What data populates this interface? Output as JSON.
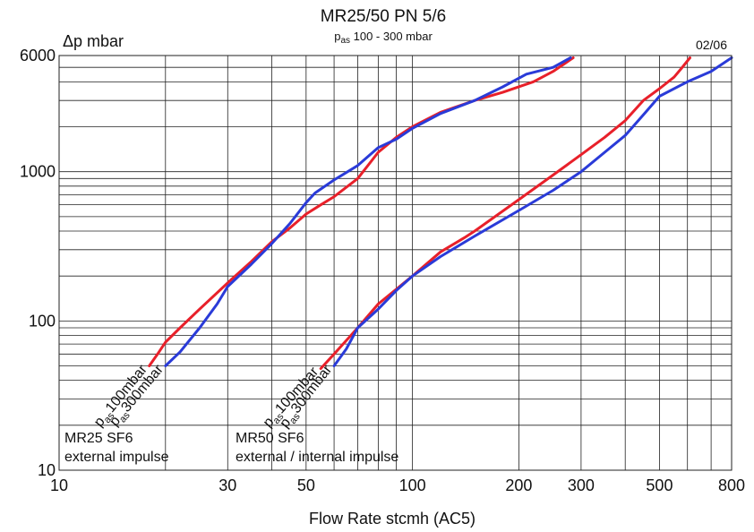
{
  "chart_data": {
    "type": "line",
    "title": "MR25/50 PN 5/6",
    "subtitle": {
      "prefix": "p",
      "sub": "as",
      "rest": " 100 - 300 mbar"
    },
    "corner_note": "02/06",
    "ylabel": "Δp mbar",
    "xlabel": "Flow Rate stcmh (AC5)",
    "x_scale": "log",
    "y_scale": "log",
    "xlim": [
      10,
      800
    ],
    "ylim": [
      10,
      6000
    ],
    "x_ticks": [
      {
        "value": 10,
        "label": "10"
      },
      {
        "value": 30,
        "label": "30"
      },
      {
        "value": 50,
        "label": "50"
      },
      {
        "value": 100,
        "label": "100"
      },
      {
        "value": 200,
        "label": "200"
      },
      {
        "value": 300,
        "label": "300"
      },
      {
        "value": 500,
        "label": "500"
      },
      {
        "value": 800,
        "label": "800"
      }
    ],
    "y_ticks": [
      {
        "value": 10,
        "label": "10"
      },
      {
        "value": 100,
        "label": "100"
      },
      {
        "value": 1000,
        "label": "1000"
      },
      {
        "value": 6000,
        "label": "6000"
      }
    ],
    "annotations": [
      {
        "name": "mr25",
        "lines": [
          "MR25 SF6",
          "external impulse"
        ]
      },
      {
        "name": "mr50",
        "lines": [
          "MR50 SF6",
          "external / internal impulse"
        ]
      }
    ],
    "colors": {
      "red": "#e8202a",
      "blue": "#2a3bd8"
    },
    "series": [
      {
        "group": "MR25",
        "color": "red",
        "label_prefix": "p",
        "label_sub": "as",
        "label_rest": "100mbar",
        "points": [
          [
            18,
            50
          ],
          [
            19,
            60
          ],
          [
            20,
            72
          ],
          [
            22,
            90
          ],
          [
            25,
            120
          ],
          [
            30,
            180
          ],
          [
            35,
            250
          ],
          [
            40,
            340
          ],
          [
            45,
            420
          ],
          [
            50,
            520
          ],
          [
            55,
            600
          ],
          [
            60,
            680
          ],
          [
            70,
            900
          ],
          [
            80,
            1350
          ],
          [
            90,
            1700
          ],
          [
            100,
            2000
          ],
          [
            120,
            2500
          ],
          [
            150,
            3000
          ],
          [
            180,
            3400
          ],
          [
            220,
            4000
          ],
          [
            250,
            4700
          ],
          [
            285,
            5800
          ]
        ]
      },
      {
        "group": "MR25",
        "color": "blue",
        "label_prefix": "p",
        "label_sub": "as",
        "label_rest": "300mbar",
        "points": [
          [
            20,
            50
          ],
          [
            22,
            62
          ],
          [
            25,
            90
          ],
          [
            28,
            130
          ],
          [
            30,
            170
          ],
          [
            35,
            240
          ],
          [
            40,
            330
          ],
          [
            45,
            450
          ],
          [
            50,
            620
          ],
          [
            53,
            720
          ],
          [
            60,
            880
          ],
          [
            70,
            1100
          ],
          [
            80,
            1450
          ],
          [
            90,
            1650
          ],
          [
            100,
            1950
          ],
          [
            120,
            2450
          ],
          [
            150,
            3000
          ],
          [
            180,
            3700
          ],
          [
            210,
            4500
          ],
          [
            250,
            5000
          ],
          [
            280,
            5800
          ]
        ]
      },
      {
        "group": "MR50",
        "color": "red",
        "label_prefix": "p",
        "label_sub": "as",
        "label_rest": "100mbar",
        "points": [
          [
            55,
            48
          ],
          [
            60,
            60
          ],
          [
            70,
            90
          ],
          [
            80,
            130
          ],
          [
            100,
            200
          ],
          [
            120,
            290
          ],
          [
            140,
            360
          ],
          [
            150,
            400
          ],
          [
            200,
            650
          ],
          [
            250,
            950
          ],
          [
            300,
            1300
          ],
          [
            350,
            1700
          ],
          [
            400,
            2200
          ],
          [
            450,
            3000
          ],
          [
            500,
            3600
          ],
          [
            550,
            4300
          ],
          [
            580,
            5000
          ],
          [
            610,
            5800
          ]
        ]
      },
      {
        "group": "MR50",
        "color": "blue",
        "label_prefix": "p",
        "label_sub": "as",
        "label_rest": "300mbar",
        "points": [
          [
            60,
            50
          ],
          [
            65,
            65
          ],
          [
            70,
            90
          ],
          [
            80,
            120
          ],
          [
            90,
            160
          ],
          [
            100,
            200
          ],
          [
            120,
            270
          ],
          [
            150,
            370
          ],
          [
            200,
            550
          ],
          [
            250,
            750
          ],
          [
            300,
            1000
          ],
          [
            350,
            1350
          ],
          [
            400,
            1750
          ],
          [
            450,
            2400
          ],
          [
            500,
            3200
          ],
          [
            600,
            4000
          ],
          [
            700,
            4700
          ],
          [
            800,
            5800
          ]
        ]
      }
    ]
  }
}
